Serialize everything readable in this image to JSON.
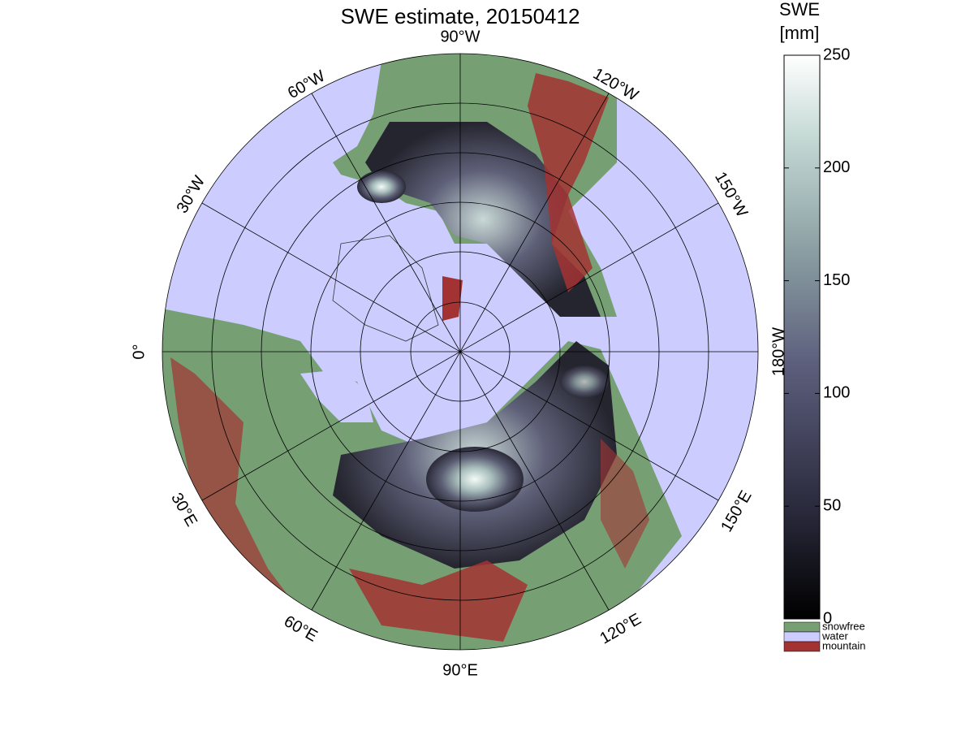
{
  "map": {
    "title": "SWE estimate, 20150412",
    "lon_labels": [
      "90°W",
      "120°W",
      "150°W",
      "180°W",
      "150°E",
      "120°E",
      "90°E",
      "60°E",
      "30°E",
      "0°",
      "30°W",
      "60°W"
    ]
  },
  "colorbar": {
    "label": [
      "SWE",
      "[mm]"
    ],
    "lim": [
      0,
      250
    ],
    "ticks": [
      0,
      50,
      100,
      150,
      200,
      250
    ]
  },
  "legend": [
    {
      "name": "snowfree",
      "color": "#76a074"
    },
    {
      "name": "water",
      "color": "#ccccff"
    },
    {
      "name": "mountain",
      "color": "#a33333"
    }
  ]
}
